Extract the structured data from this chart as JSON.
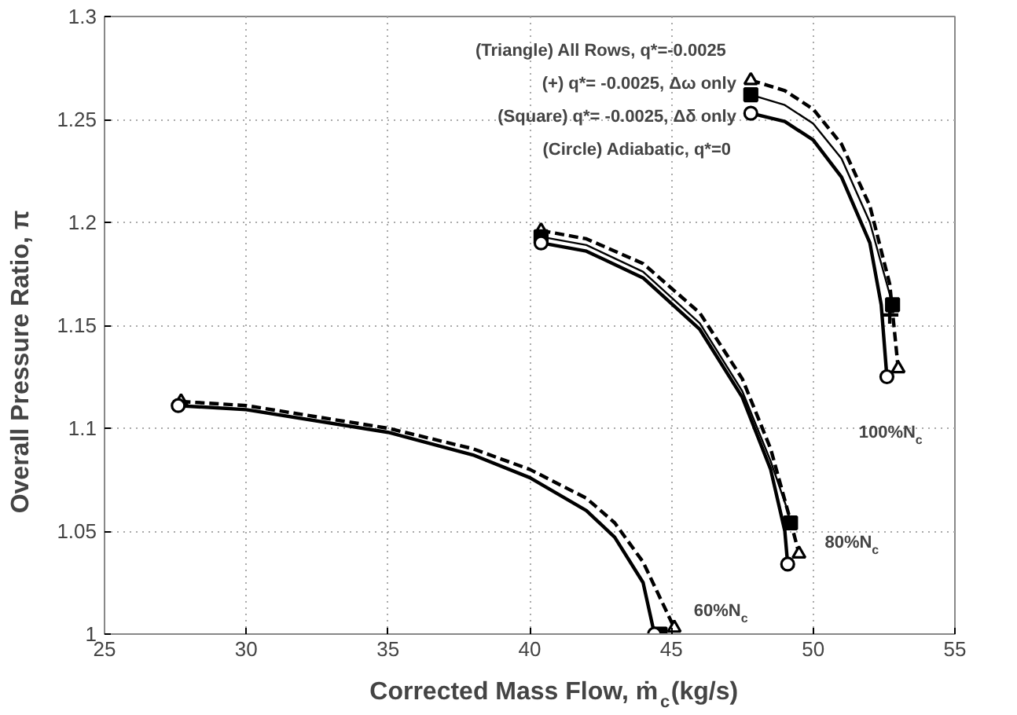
{
  "chart_data": {
    "type": "line",
    "xlabel": "Corrected Mass Flow, ṁ$_{c}$(kg/s)",
    "ylabel": "Overall Pressure Ratio, π",
    "xlim": [
      25,
      55
    ],
    "ylim": [
      1,
      1.3
    ],
    "xticks": [
      25,
      30,
      35,
      40,
      45,
      50,
      55
    ],
    "yticks": [
      1,
      1.05,
      1.1,
      1.15,
      1.2,
      1.25,
      1.3
    ],
    "grid": true,
    "series": [
      {
        "line_style": "solid",
        "color": "#000000",
        "x": [
          27.6,
          30,
          35,
          38,
          40,
          42,
          43,
          44,
          44.4,
          null,
          40.4,
          42,
          44,
          46,
          47.5,
          48.5,
          49,
          49.1,
          null,
          47.8,
          49,
          50,
          51,
          52,
          52.4,
          52.6
        ],
        "values": [
          1.111,
          1.109,
          1.098,
          1.087,
          1.076,
          1.06,
          1.047,
          1.025,
          1.0,
          null,
          1.19,
          1.186,
          1.173,
          1.148,
          1.115,
          1.08,
          1.05,
          1.034,
          null,
          1.253,
          1.249,
          1.24,
          1.222,
          1.19,
          1.16,
          1.125
        ]
      },
      {
        "line_style": "solid",
        "color": "#000000",
        "x": [
          40.4,
          42,
          44,
          46,
          47.5,
          48.5,
          49.1,
          49.2,
          null,
          47.8,
          49,
          50,
          51,
          52,
          52.5,
          52.8
        ],
        "values": [
          1.193,
          1.189,
          1.176,
          1.151,
          1.118,
          1.084,
          1.06,
          1.054,
          null,
          1.262,
          1.257,
          1.248,
          1.231,
          1.2,
          1.175,
          1.16
        ]
      },
      {
        "line_style": "dashed",
        "color": "#000000",
        "x": [
          27.7,
          30,
          35,
          38,
          40,
          42,
          43,
          44,
          45.1,
          null,
          40.4,
          42,
          44,
          46,
          47.5,
          48.5,
          49.2,
          49.5,
          null,
          47.8,
          49,
          50,
          51,
          52,
          52.7,
          53.0
        ],
        "values": [
          1.113,
          1.111,
          1.1,
          1.09,
          1.08,
          1.066,
          1.054,
          1.035,
          1.003,
          null,
          1.196,
          1.192,
          1.18,
          1.156,
          1.124,
          1.09,
          1.055,
          1.039,
          null,
          1.269,
          1.264,
          1.255,
          1.238,
          1.208,
          1.17,
          1.129
        ]
      },
      {
        "type": "scatter",
        "marker": "circle",
        "color": "#000000",
        "x": [
          27.6,
          44.4,
          40.4,
          49.1,
          47.8,
          52.6
        ],
        "values": [
          1.111,
          1.0,
          1.19,
          1.034,
          1.253,
          1.125
        ]
      },
      {
        "type": "scatter",
        "marker": "square",
        "color": "#000000",
        "x": [
          44.6,
          40.4,
          49.2,
          47.8,
          52.8
        ],
        "values": [
          1.0,
          1.193,
          1.054,
          1.262,
          1.16
        ]
      },
      {
        "type": "scatter",
        "marker": "cross",
        "color": "#000000",
        "x": [
          52.7
        ],
        "values": [
          1.155
        ]
      },
      {
        "type": "scatter",
        "marker": "triangle",
        "color": "#000000",
        "x": [
          27.7,
          45.1,
          40.4,
          49.5,
          47.8,
          53.0
        ],
        "values": [
          1.113,
          1.003,
          1.196,
          1.039,
          1.269,
          1.129
        ]
      }
    ],
    "annotations": [
      "(Triangle)  All  Rows,  q*=-0.0025",
      "(+)  q*= -0.0025, Δω only",
      "(Square)  q*= -0.0025, Δδ only",
      "(Circle)  Adiabatic,  q*=0",
      "100%N$_{c}$",
      "80%N$_{c}$",
      "60%N$_{c}$"
    ]
  }
}
